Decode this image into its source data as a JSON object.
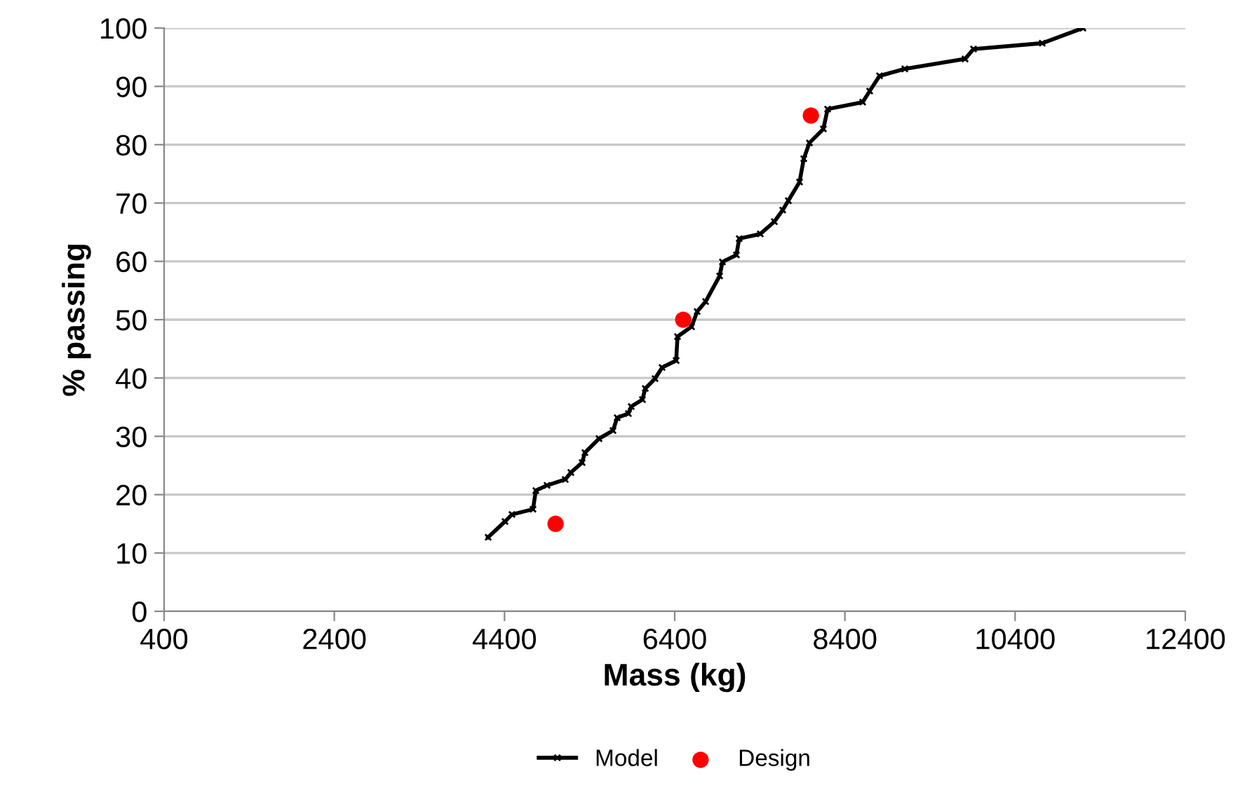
{
  "chart_data": {
    "type": "line",
    "xlabel": "Mass (kg)",
    "ylabel": "% passing",
    "xlim": [
      400,
      12400
    ],
    "xticks": [
      400,
      2400,
      4400,
      6400,
      8400,
      10400,
      12400
    ],
    "ylim": [
      0,
      100
    ],
    "yticks": [
      0,
      10,
      20,
      30,
      40,
      50,
      60,
      70,
      80,
      90,
      100
    ],
    "grid": "y",
    "legend": "bottom",
    "series": [
      {
        "name": "Model",
        "color": "#000000",
        "marker": "cross",
        "line_style": "solid",
        "x": [
          4208,
          4406,
          4488,
          4735,
          4768,
          4900,
          5114,
          5180,
          5312,
          5345,
          5510,
          5675,
          5724,
          5856,
          5889,
          6021,
          6054,
          6169,
          6252,
          6417,
          6433,
          6598,
          6664,
          6763,
          6928,
          6961,
          7125,
          7158,
          7406,
          7571,
          7669,
          7735,
          7867,
          7917,
          7983,
          8147,
          8197,
          8609,
          8691,
          8807,
          9104,
          9812,
          9911,
          10719,
          11197
        ],
        "values": [
          12.7,
          15.4,
          16.6,
          17.5,
          20.7,
          21.6,
          22.6,
          23.8,
          25.5,
          27.2,
          29.6,
          31.0,
          33.2,
          33.9,
          35.1,
          36.3,
          38.2,
          39.9,
          41.8,
          43.0,
          47.1,
          48.8,
          51.4,
          53.1,
          57.5,
          59.9,
          61.1,
          63.9,
          64.7,
          66.8,
          68.8,
          70.4,
          73.6,
          77.6,
          80.3,
          82.7,
          86.1,
          87.3,
          89.2,
          91.8,
          93.0,
          94.7,
          96.4,
          97.4,
          100.0
        ]
      },
      {
        "name": "Design",
        "type": "scatter",
        "color": "#ff0000",
        "marker": "circle",
        "x": [
          5000,
          6500,
          8000
        ],
        "values": [
          15,
          50,
          85
        ]
      }
    ]
  }
}
